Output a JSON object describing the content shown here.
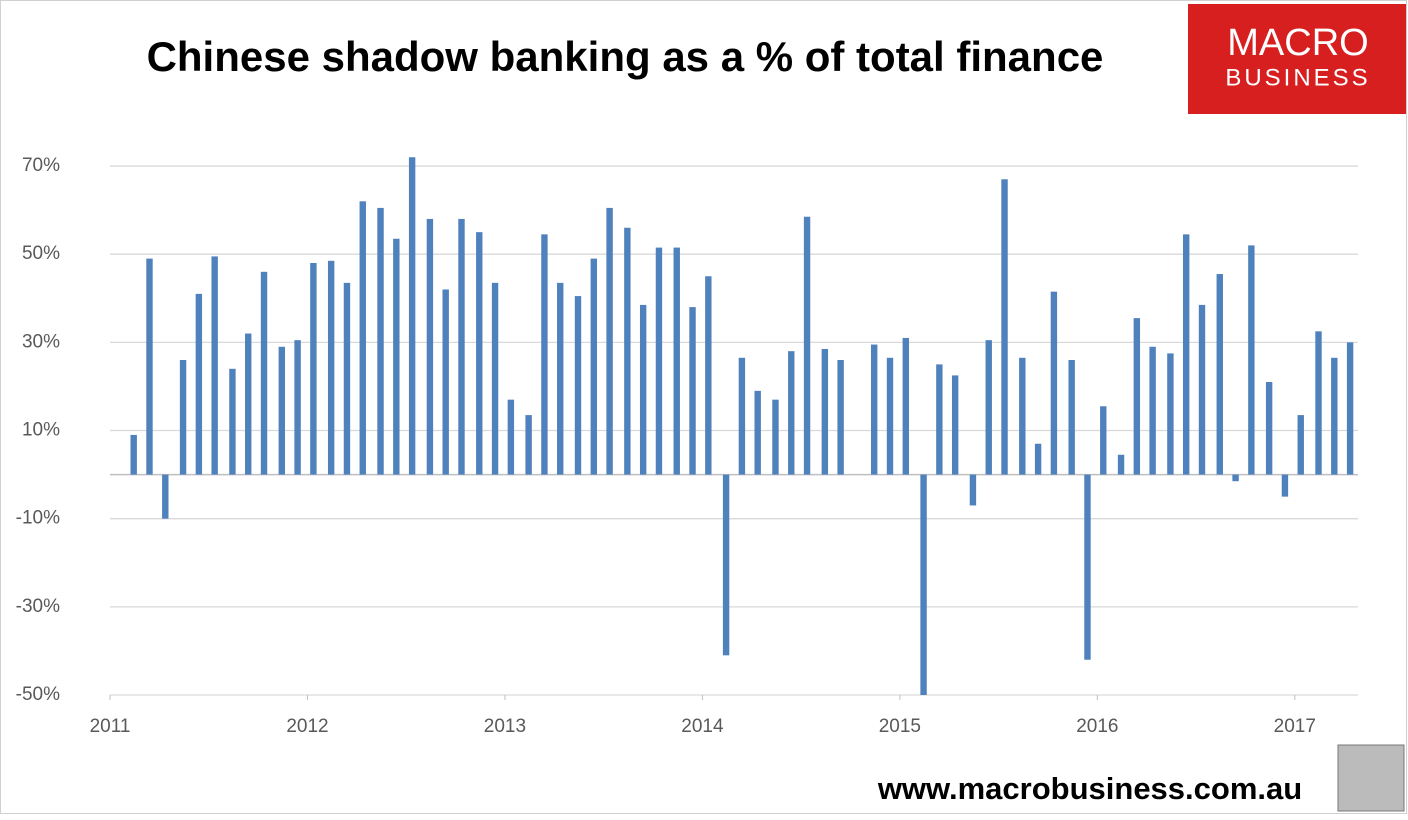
{
  "chart_data": {
    "type": "bar",
    "title": "Chinese shadow banking as a % of total finance",
    "brand": {
      "line1": "MACRO",
      "line2": "BUSINESS"
    },
    "source": "www.macrobusiness.com.au",
    "color": "#4f81bd",
    "grid": true,
    "x": [
      2011.12,
      2011.2,
      2011.28,
      2011.37,
      2011.45,
      2011.53,
      2011.62,
      2011.7,
      2011.78,
      2011.87,
      2011.95,
      2012.03,
      2012.12,
      2012.2,
      2012.28,
      2012.37,
      2012.45,
      2012.53,
      2012.62,
      2012.7,
      2012.78,
      2012.87,
      2012.95,
      2013.03,
      2013.12,
      2013.2,
      2013.28,
      2013.37,
      2013.45,
      2013.53,
      2013.62,
      2013.7,
      2013.78,
      2013.87,
      2013.95,
      2014.03,
      2014.12,
      2014.2,
      2014.28,
      2014.37,
      2014.45,
      2014.53,
      2014.62,
      2014.7,
      2014.78,
      2014.87,
      2014.95,
      2015.03,
      2015.12,
      2015.2,
      2015.28,
      2015.37,
      2015.45,
      2015.53,
      2015.62,
      2015.7,
      2015.78,
      2015.87,
      2015.95,
      2016.03,
      2016.12,
      2016.2,
      2016.28,
      2016.37,
      2016.45,
      2016.53,
      2016.62,
      2016.7,
      2016.78,
      2016.87,
      2016.95,
      2017.03,
      2017.12,
      2017.2,
      2017.28
    ],
    "values": [
      9,
      49,
      -10,
      26,
      41,
      49.5,
      24,
      32,
      46,
      29,
      30.5,
      48,
      48.5,
      43.5,
      62,
      60.5,
      53.5,
      72,
      58,
      42,
      58,
      55,
      43.5,
      17,
      13.5,
      54.5,
      43.5,
      40.5,
      49,
      60.5,
      56,
      38.5,
      51.5,
      51.5,
      38,
      45,
      -41,
      26.5,
      19,
      17,
      28,
      58.5,
      28.5,
      26,
      null,
      29.5,
      26.5,
      31,
      -50,
      25,
      22.5,
      -7,
      30.5,
      67,
      26.5,
      7,
      41.5,
      26,
      -42,
      15.5,
      4.5,
      35.5,
      29,
      27.5,
      54.5,
      38.5,
      45.5,
      -1.5,
      52,
      21,
      -5,
      13.5,
      32.5,
      26.5,
      30
    ],
    "xlim": [
      2011,
      2017.32
    ],
    "xticks": [
      2011,
      2012,
      2013,
      2014,
      2015,
      2016,
      2017
    ],
    "ylim": [
      -50,
      75
    ],
    "yticks": [
      {
        "value": -50,
        "label": "-50%"
      },
      {
        "value": -30,
        "label": "-30%"
      },
      {
        "value": -10,
        "label": "-10%"
      },
      {
        "value": 10,
        "label": "10%"
      },
      {
        "value": 30,
        "label": "30%"
      },
      {
        "value": 50,
        "label": "50%"
      },
      {
        "value": 70,
        "label": "70%"
      }
    ]
  }
}
